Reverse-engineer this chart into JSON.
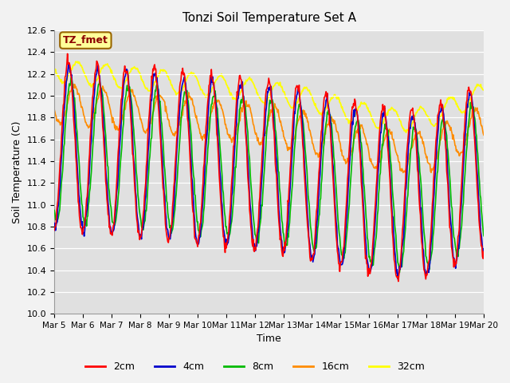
{
  "title": "Tonzi Soil Temperature Set A",
  "xlabel": "Time",
  "ylabel": "Soil Temperature (C)",
  "ylim": [
    10.0,
    12.6
  ],
  "yticks": [
    10.0,
    10.2,
    10.4,
    10.6,
    10.8,
    11.0,
    11.2,
    11.4,
    11.6,
    11.8,
    12.0,
    12.2,
    12.4,
    12.6
  ],
  "colors": {
    "2cm": "#FF0000",
    "4cm": "#0000CC",
    "8cm": "#00BB00",
    "16cm": "#FF8C00",
    "32cm": "#FFFF00"
  },
  "legend_label": "TZ_fmet",
  "legend_box_color": "#FFFF99",
  "legend_text_color": "#8B0000",
  "n_days": 15,
  "start_day": 5,
  "points_per_day": 48
}
